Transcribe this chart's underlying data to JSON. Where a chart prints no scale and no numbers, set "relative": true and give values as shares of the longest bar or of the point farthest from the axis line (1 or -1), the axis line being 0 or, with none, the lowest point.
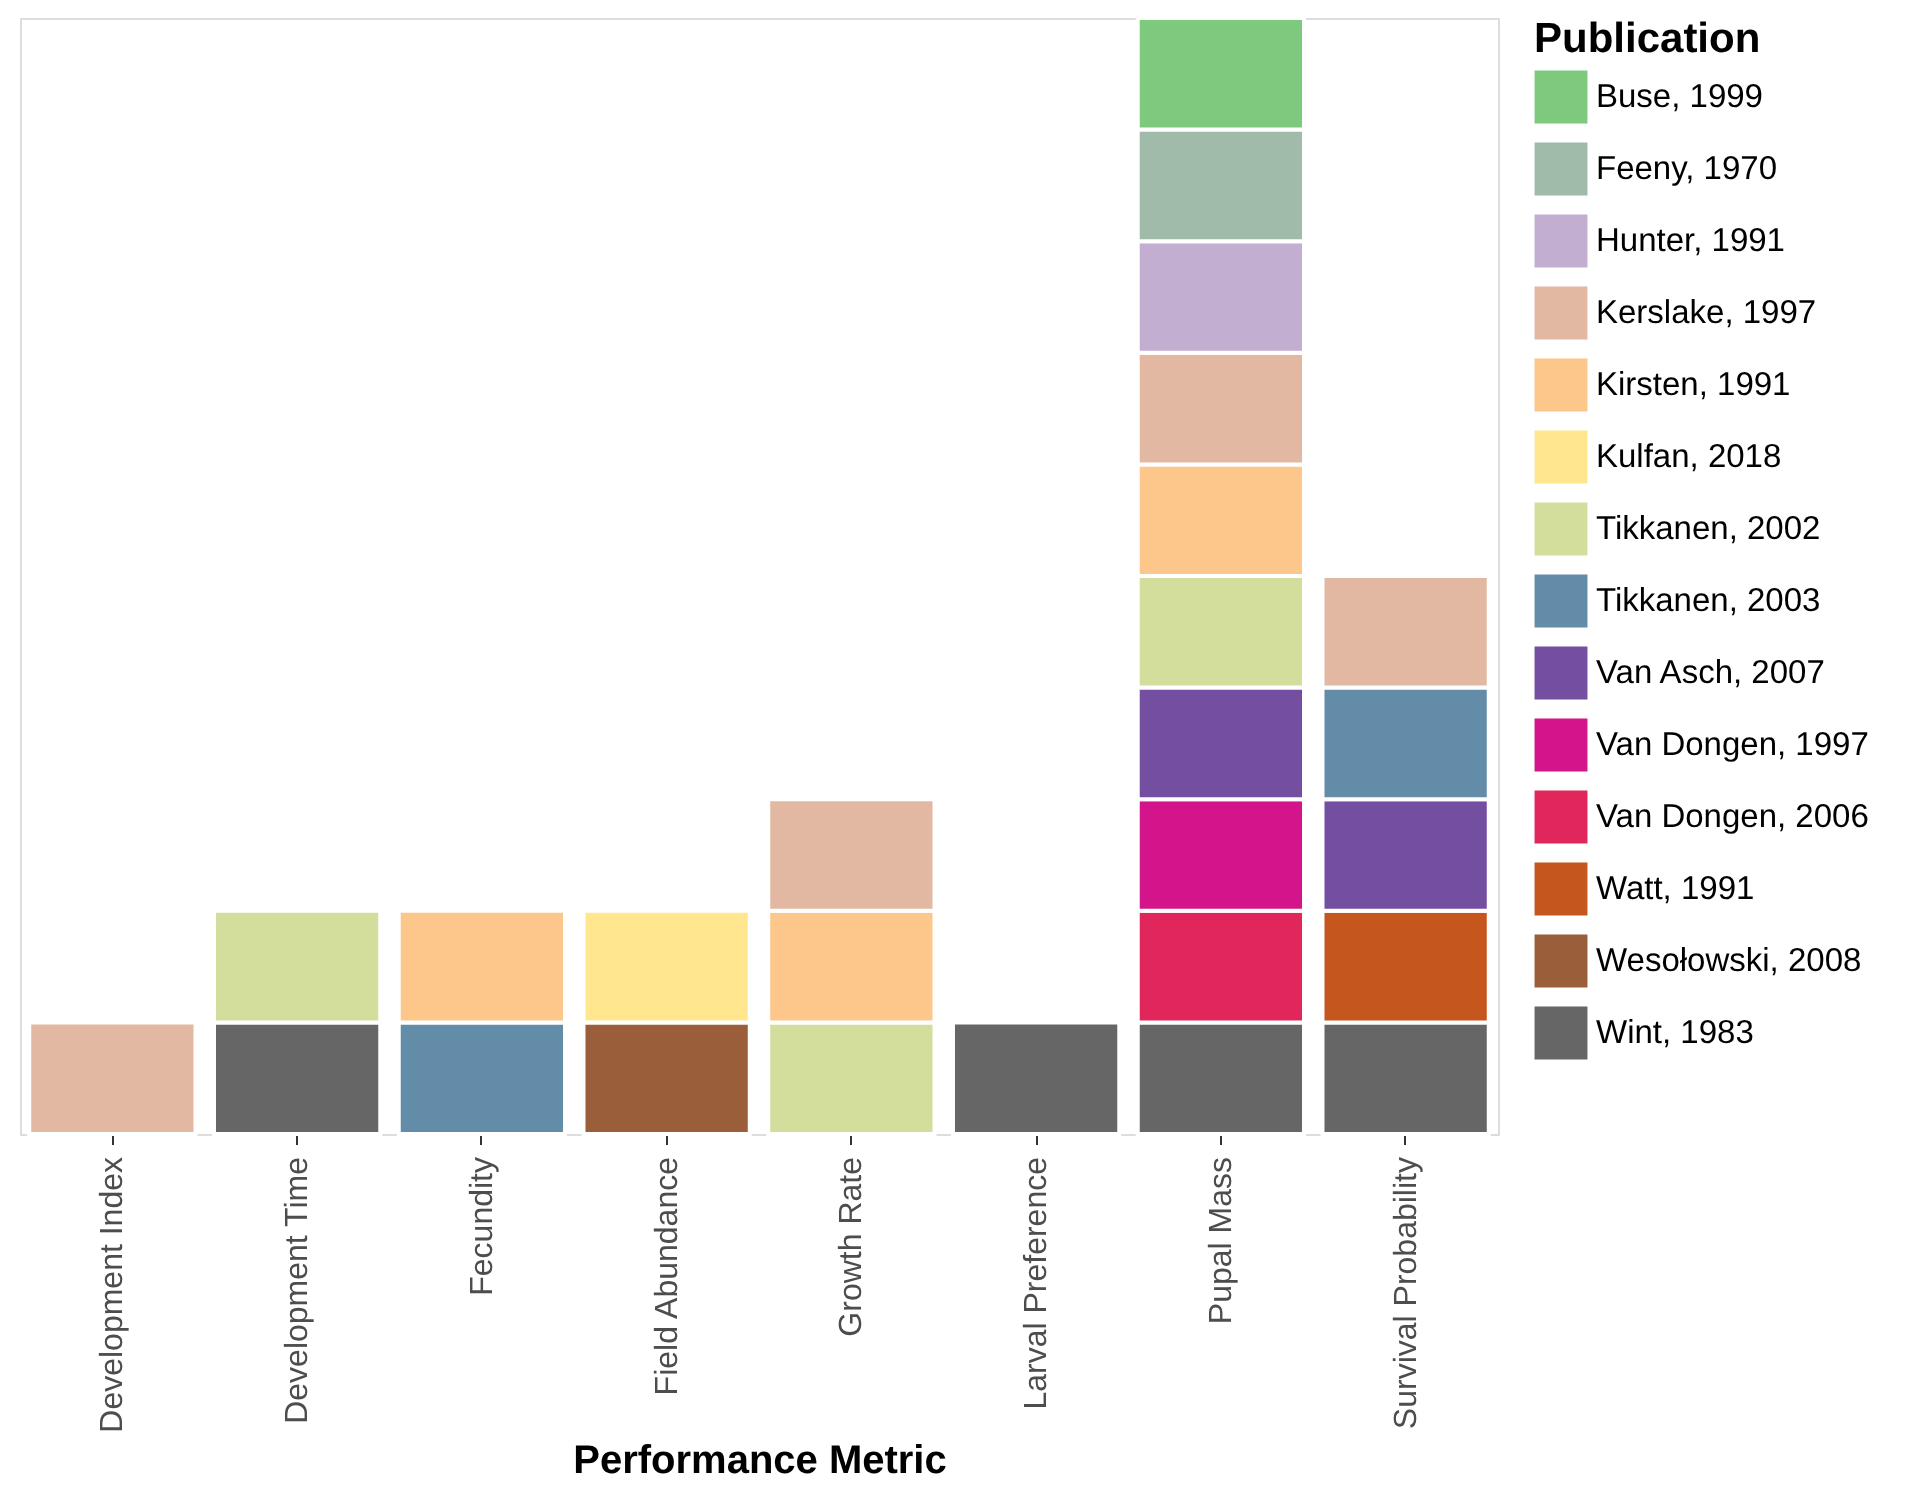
{
  "chart_data": {
    "type": "bar",
    "stacked": true,
    "relative": true,
    "xlabel": "Performance Metric",
    "legend_title": "Publication",
    "legend": "right",
    "grid": false,
    "categories": [
      "Development Index",
      "Development Time",
      "Fecundity",
      "Field Abundance",
      "Growth Rate",
      "Larval Preference",
      "Pupal Mass",
      "Survival Probability"
    ],
    "series": [
      {
        "name": "Wint, 1983",
        "color": "#666666",
        "values": [
          null,
          0.1,
          null,
          null,
          null,
          0.1,
          0.1,
          0.1
        ]
      },
      {
        "name": "Wesołowski, 2008",
        "color": "#9a5f3a",
        "values": [
          null,
          null,
          null,
          0.1,
          null,
          null,
          null,
          null
        ]
      },
      {
        "name": "Watt, 1991",
        "color": "#c4561e",
        "values": [
          null,
          null,
          null,
          null,
          null,
          null,
          null,
          0.1
        ]
      },
      {
        "name": "Van Dongen, 2006",
        "color": "#e0265a",
        "values": [
          null,
          null,
          null,
          null,
          null,
          null,
          0.1,
          null
        ]
      },
      {
        "name": "Van Dongen, 1997",
        "color": "#d4148a",
        "values": [
          null,
          null,
          null,
          null,
          null,
          null,
          0.1,
          null
        ]
      },
      {
        "name": "Van Asch, 2007",
        "color": "#744ea0",
        "values": [
          null,
          null,
          null,
          null,
          null,
          null,
          0.1,
          0.1
        ]
      },
      {
        "name": "Tikkanen, 2003",
        "color": "#628ca8",
        "values": [
          null,
          null,
          0.1,
          null,
          null,
          null,
          null,
          0.1
        ]
      },
      {
        "name": "Tikkanen, 2002",
        "color": "#d3de9d",
        "values": [
          null,
          0.1,
          null,
          null,
          0.1,
          null,
          0.1,
          null
        ]
      },
      {
        "name": "Kulfan, 2018",
        "color": "#ffe68f",
        "values": [
          null,
          null,
          null,
          0.1,
          null,
          null,
          null,
          null
        ]
      },
      {
        "name": "Kirsten, 1991",
        "color": "#fdc68a",
        "values": [
          null,
          null,
          0.1,
          null,
          0.1,
          null,
          0.1,
          null
        ]
      },
      {
        "name": "Kerslake, 1997",
        "color": "#e3b8a2",
        "values": [
          0.1,
          null,
          null,
          null,
          0.1,
          null,
          0.1,
          0.1
        ]
      },
      {
        "name": "Hunter, 1991",
        "color": "#c2aed1",
        "values": [
          null,
          null,
          null,
          null,
          null,
          null,
          0.1,
          null
        ]
      },
      {
        "name": "Feeny, 1970",
        "color": "#a0bba9",
        "values": [
          null,
          null,
          null,
          null,
          null,
          null,
          0.1,
          null
        ]
      },
      {
        "name": "Buse, 1999",
        "color": "#7fc97f",
        "values": [
          null,
          null,
          null,
          null,
          null,
          null,
          0.1,
          null
        ]
      }
    ]
  }
}
